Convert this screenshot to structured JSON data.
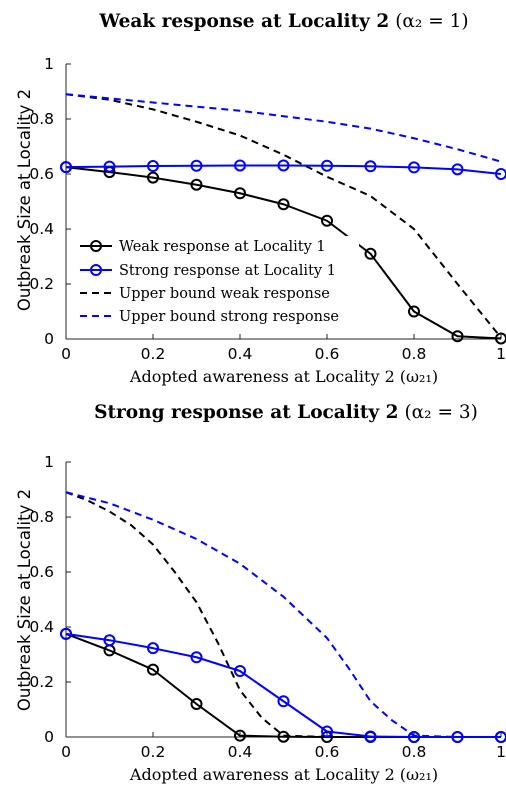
{
  "chart_data": [
    {
      "type": "line",
      "title": "Weak response at Locality 2 (α₂ = 1)",
      "title_main": "Weak response at Locality 2",
      "title_math": "(α₂ = 1)",
      "xlabel_main": "Adopted awareness at Locality 2",
      "xlabel_math": "(ω₂₁)",
      "ylabel": "Outbreak Size at Locality 2",
      "xlim": [
        0,
        1
      ],
      "ylim": [
        0,
        1
      ],
      "xticks": [
        "0",
        "0.2",
        "0.4",
        "0.6",
        "0.8",
        "1"
      ],
      "yticks": [
        "0",
        "0.2",
        "0.4",
        "0.6",
        "0.8",
        "1"
      ],
      "grid": false,
      "legend_position": "lower-left",
      "series": [
        {
          "name": "Weak response at Locality 1",
          "color": "#000000",
          "style": "solid",
          "marker": "circle",
          "x": [
            0,
            0.1,
            0.2,
            0.3,
            0.4,
            0.5,
            0.6,
            0.7,
            0.8,
            0.9,
            1
          ],
          "y": [
            0.625,
            0.607,
            0.587,
            0.561,
            0.53,
            0.49,
            0.43,
            0.31,
            0.1,
            0.01,
            0.002
          ]
        },
        {
          "name": "Strong response at Locality 1",
          "color": "#0000ff",
          "style": "solid",
          "marker": "circle",
          "x": [
            0,
            0.1,
            0.2,
            0.3,
            0.4,
            0.5,
            0.6,
            0.7,
            0.8,
            0.9,
            1
          ],
          "y": [
            0.625,
            0.627,
            0.629,
            0.63,
            0.631,
            0.631,
            0.63,
            0.628,
            0.624,
            0.617,
            0.6
          ]
        },
        {
          "name": "Upper bound weak response",
          "color": "#000000",
          "style": "dashed",
          "marker": "none",
          "x": [
            0,
            0.1,
            0.2,
            0.3,
            0.4,
            0.5,
            0.6,
            0.7,
            0.8,
            0.9,
            1
          ],
          "y": [
            0.89,
            0.87,
            0.835,
            0.79,
            0.74,
            0.67,
            0.59,
            0.52,
            0.4,
            0.2,
            0.005
          ]
        },
        {
          "name": "Upper bound strong response",
          "color": "#0000ff",
          "style": "dashed",
          "marker": "none",
          "x": [
            0,
            0.1,
            0.2,
            0.3,
            0.4,
            0.5,
            0.6,
            0.7,
            0.8,
            0.9,
            1
          ],
          "y": [
            0.89,
            0.875,
            0.86,
            0.845,
            0.83,
            0.81,
            0.79,
            0.765,
            0.73,
            0.69,
            0.645
          ]
        }
      ]
    },
    {
      "type": "line",
      "title": "Strong response at Locality 2 (α₂ = 3)",
      "title_main": "Strong response at Locality 2",
      "title_math": "(α₂ = 3)",
      "xlabel_main": "Adopted awareness at Locality 2",
      "xlabel_math": "(ω₂₁)",
      "ylabel": "Outbreak Size at Locality 2",
      "xlim": [
        0,
        1
      ],
      "ylim": [
        0,
        1
      ],
      "xticks": [
        "0",
        "0.2",
        "0.4",
        "0.6",
        "0.8",
        "1"
      ],
      "yticks": [
        "0",
        "0.2",
        "0.4",
        "0.6",
        "0.8",
        "1"
      ],
      "grid": false,
      "series": [
        {
          "name": "Weak response at Locality 1",
          "color": "#000000",
          "style": "solid",
          "marker": "circle",
          "x": [
            0,
            0.1,
            0.2,
            0.3,
            0.4,
            0.5,
            0.6,
            0.7,
            0.8,
            0.9,
            1
          ],
          "y": [
            0.375,
            0.315,
            0.245,
            0.12,
            0.005,
            0.001,
            0,
            0,
            0,
            0,
            0
          ]
        },
        {
          "name": "Strong response at Locality 1",
          "color": "#0000ff",
          "style": "solid",
          "marker": "circle",
          "x": [
            0,
            0.1,
            0.2,
            0.3,
            0.4,
            0.5,
            0.6,
            0.7,
            0.8,
            0.9,
            1
          ],
          "y": [
            0.375,
            0.352,
            0.323,
            0.29,
            0.24,
            0.13,
            0.02,
            0.002,
            0,
            0,
            0
          ]
        },
        {
          "name": "Upper bound weak response",
          "color": "#000000",
          "style": "dashed",
          "marker": "none",
          "x": [
            0,
            0.05,
            0.1,
            0.15,
            0.2,
            0.25,
            0.3,
            0.35,
            0.4,
            0.45,
            0.5,
            0.6,
            1
          ],
          "y": [
            0.89,
            0.86,
            0.82,
            0.77,
            0.7,
            0.6,
            0.49,
            0.34,
            0.17,
            0.07,
            0.005,
            0,
            0
          ]
        },
        {
          "name": "Upper bound strong response",
          "color": "#0000ff",
          "style": "dashed",
          "marker": "none",
          "x": [
            0,
            0.1,
            0.2,
            0.3,
            0.4,
            0.5,
            0.6,
            0.65,
            0.7,
            0.75,
            0.8,
            0.9,
            1
          ],
          "y": [
            0.89,
            0.85,
            0.79,
            0.72,
            0.63,
            0.51,
            0.36,
            0.25,
            0.13,
            0.06,
            0.005,
            0,
            0
          ]
        }
      ]
    }
  ]
}
